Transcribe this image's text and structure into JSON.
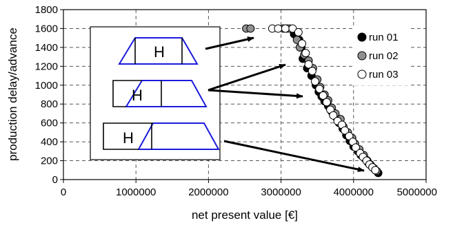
{
  "chart_data": {
    "type": "scatter",
    "xlabel": "net present value [€]",
    "ylabel": "production delay/advance",
    "xlim": [
      0,
      5000000
    ],
    "ylim": [
      0,
      1800
    ],
    "xticks": [
      0,
      1000000,
      2000000,
      3000000,
      4000000,
      5000000
    ],
    "yticks": [
      0,
      200,
      400,
      600,
      800,
      1000,
      1200,
      1400,
      1600,
      1800
    ],
    "grid": true,
    "legend_position": "right",
    "series": [
      {
        "name": "run 01",
        "color": "#000000",
        "points": [
          [
            3080000,
            1600
          ],
          [
            3180000,
            1540
          ],
          [
            3250000,
            1480
          ],
          [
            3280000,
            1400
          ],
          [
            3300000,
            1280
          ],
          [
            3360000,
            1180
          ],
          [
            3420000,
            1100
          ],
          [
            3480000,
            1000
          ],
          [
            3520000,
            930
          ],
          [
            3560000,
            880
          ],
          [
            3600000,
            830
          ],
          [
            3650000,
            780
          ],
          [
            3700000,
            720
          ],
          [
            3760000,
            660
          ],
          [
            3800000,
            600
          ],
          [
            3850000,
            540
          ],
          [
            3900000,
            470
          ],
          [
            3950000,
            410
          ],
          [
            4000000,
            350
          ],
          [
            4060000,
            300
          ],
          [
            4100000,
            260
          ],
          [
            4160000,
            220
          ],
          [
            4200000,
            180
          ],
          [
            4250000,
            140
          ],
          [
            4300000,
            100
          ],
          [
            4340000,
            70
          ]
        ]
      },
      {
        "name": "run 02",
        "color": "#909090",
        "points": [
          [
            2520000,
            1600
          ],
          [
            2580000,
            1600
          ],
          [
            3030000,
            1600
          ],
          [
            3120000,
            1600
          ],
          [
            3220000,
            1480
          ],
          [
            3260000,
            1400
          ],
          [
            3320000,
            1320
          ],
          [
            3380000,
            1260
          ],
          [
            3440000,
            1180
          ],
          [
            3500000,
            1060
          ],
          [
            3540000,
            980
          ],
          [
            3600000,
            900
          ],
          [
            3650000,
            840
          ],
          [
            3700000,
            760
          ],
          [
            3750000,
            700
          ],
          [
            3820000,
            640
          ],
          [
            3860000,
            560
          ],
          [
            3920000,
            500
          ],
          [
            3980000,
            440
          ],
          [
            4020000,
            380
          ],
          [
            4080000,
            320
          ],
          [
            4140000,
            260
          ],
          [
            4190000,
            200
          ],
          [
            4230000,
            160
          ],
          [
            4280000,
            120
          ],
          [
            4320000,
            90
          ]
        ]
      },
      {
        "name": "run 03",
        "color": "#ffffff",
        "points": [
          [
            2880000,
            1600
          ],
          [
            2960000,
            1600
          ],
          [
            3060000,
            1600
          ],
          [
            3160000,
            1600
          ],
          [
            3240000,
            1560
          ],
          [
            3290000,
            1440
          ],
          [
            3340000,
            1340
          ],
          [
            3380000,
            1220
          ],
          [
            3430000,
            1150
          ],
          [
            3470000,
            1040
          ],
          [
            3530000,
            960
          ],
          [
            3580000,
            890
          ],
          [
            3630000,
            820
          ],
          [
            3680000,
            740
          ],
          [
            3720000,
            680
          ],
          [
            3780000,
            620
          ],
          [
            3840000,
            580
          ],
          [
            3880000,
            520
          ],
          [
            3940000,
            460
          ],
          [
            3990000,
            400
          ],
          [
            4030000,
            340
          ],
          [
            4090000,
            280
          ],
          [
            4130000,
            240
          ],
          [
            4180000,
            200
          ],
          [
            4220000,
            160
          ],
          [
            4260000,
            130
          ],
          [
            4300000,
            100
          ]
        ]
      }
    ],
    "inset_labels": [
      "H",
      "H",
      "H"
    ]
  }
}
